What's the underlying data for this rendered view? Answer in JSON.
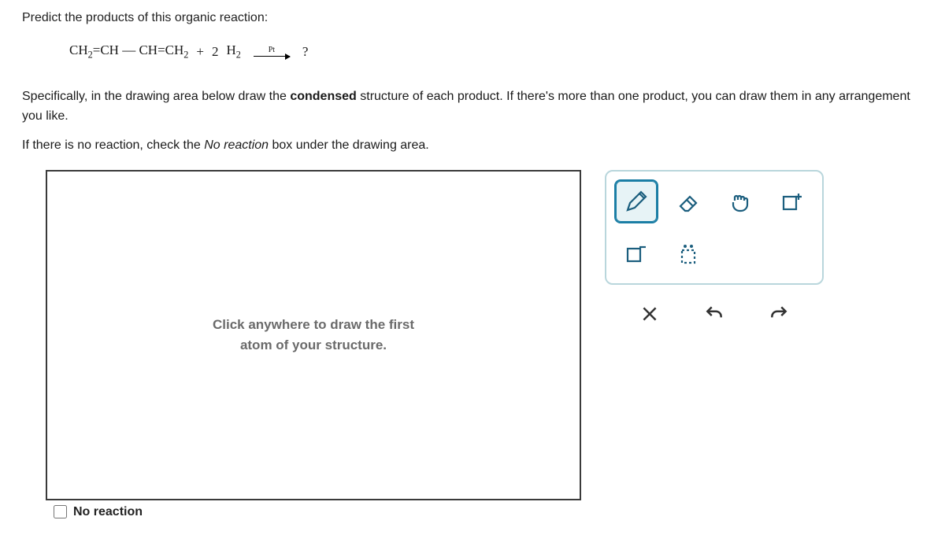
{
  "question": {
    "title": "Predict the products of this organic reaction:",
    "reaction": {
      "reactant_html": "CH<sub>2</sub>=CH — CH=CH<sub>2</sub>",
      "plus": "+",
      "coef": "2",
      "reagent_html": "H<sub>2</sub>",
      "catalyst": "Pt",
      "product_placeholder": "?"
    },
    "instruction_line1_pre": "Specifically, in the drawing area below draw the ",
    "instruction_line1_bold": "condensed",
    "instruction_line1_post": " structure of each product. If there's more than one product, you can draw them in any arrangement you like.",
    "instruction_line2_pre": "If there is no reaction, check the ",
    "instruction_line2_italic": "No reaction",
    "instruction_line2_post": " box under the drawing area."
  },
  "canvas": {
    "hint_line1": "Click anywhere to draw the first",
    "hint_line2": "atom of your structure."
  },
  "tools": {
    "pencil": "pencil-icon",
    "eraser": "eraser-icon",
    "grab": "grab-icon",
    "charge_plus": "charge-plus-icon",
    "charge_minus": "charge-minus-icon",
    "lone_pair": "lone-pair-icon"
  },
  "actions": {
    "clear": "clear-icon",
    "undo": "undo-icon",
    "redo": "redo-icon"
  },
  "no_reaction": {
    "label": "No reaction"
  },
  "colors": {
    "accent": "#1b7ea5",
    "panel_border": "#b9d6dc",
    "text": "#1a1a1a",
    "hint": "#6a6a6a",
    "canvas_border": "#3a3a3a"
  }
}
